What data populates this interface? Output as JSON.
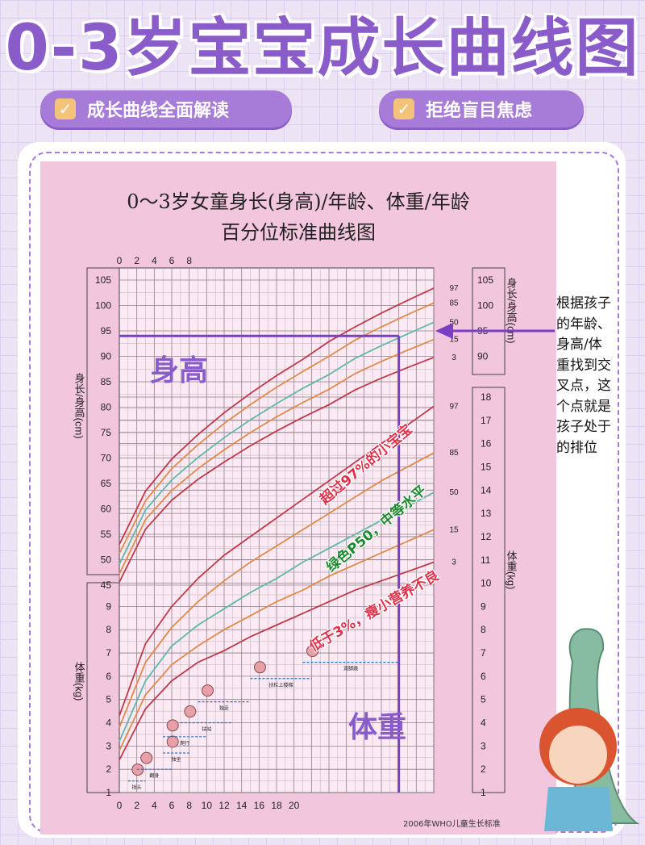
{
  "header": {
    "title": "0-3岁宝宝成长曲线图",
    "pill_left": "成长曲线全面解读",
    "pill_right": "拒绝盲目焦虑"
  },
  "chart": {
    "title_line1": "0～3岁女童身长(身高)/年龄、体重/年龄",
    "title_line2": "百分位标准曲线图",
    "height_axis_label": "身长/身高(cm)",
    "weight_axis_label": "体重(kg)",
    "source": "2006年WHO儿童生长标准",
    "section_height": "身高",
    "section_weight": "体重"
  },
  "annotations": {
    "p97": "超过97%的小宝宝",
    "p50": "绿色P50，中等水平",
    "p3": "低于3%，瘦小营养不良"
  },
  "side_note": "根据孩子的年龄、身高/体重找到交叉点，这个点就是孩子处于的排位",
  "milestones": [
    "抬头",
    "翻身",
    "独坐",
    "爬行",
    "扶站",
    "独走",
    "扶栏上楼梯",
    "双脚跳"
  ],
  "colors": {
    "accent": "#8a5cc9",
    "p97": "#c0394a",
    "p85": "#e08a4a",
    "p50": "#5fb8a8",
    "p15": "#e08a4a",
    "p3": "#c0394a",
    "sheet": "#f2c6dd"
  },
  "chart_data": [
    {
      "type": "line",
      "title": "0～3岁女童身长(身高)/年龄",
      "xlabel": "",
      "ylabel": "身长/身高(cm)",
      "x": [
        0,
        3,
        6,
        9,
        12,
        15,
        18,
        21,
        24,
        27,
        30,
        33,
        36
      ],
      "xlim": [
        0,
        36
      ],
      "ylim": [
        45,
        105
      ],
      "series": [
        {
          "name": "97",
          "values": [
            53.0,
            63.5,
            69.8,
            74.6,
            78.9,
            82.7,
            86.2,
            89.4,
            92.9,
            95.8,
            98.5,
            101.0,
            103.4
          ]
        },
        {
          "name": "85",
          "values": [
            51.2,
            61.6,
            67.9,
            72.6,
            76.8,
            80.5,
            83.9,
            87.0,
            90.0,
            93.2,
            95.8,
            98.2,
            100.5
          ]
        },
        {
          "name": "50",
          "values": [
            49.1,
            59.8,
            65.7,
            70.1,
            74.0,
            77.5,
            80.7,
            83.7,
            86.4,
            89.6,
            92.1,
            94.4,
            96.7
          ]
        },
        {
          "name": "15",
          "values": [
            47.2,
            57.9,
            63.6,
            67.9,
            71.6,
            75.0,
            78.1,
            80.9,
            83.5,
            86.6,
            89.0,
            91.2,
            93.3
          ]
        },
        {
          "name": "3",
          "values": [
            45.6,
            56.0,
            61.7,
            65.8,
            69.2,
            72.4,
            75.3,
            78.0,
            80.5,
            83.4,
            85.7,
            87.8,
            89.8
          ]
        }
      ]
    },
    {
      "type": "line",
      "title": "体重/年龄",
      "xlabel": "",
      "ylabel": "体重(kg)",
      "x": [
        0,
        3,
        6,
        9,
        12,
        15,
        18,
        21,
        24,
        27,
        30,
        33,
        36
      ],
      "xlim": [
        0,
        36
      ],
      "ylim": [
        1,
        18
      ],
      "series": [
        {
          "name": "97",
          "values": [
            4.3,
            7.4,
            9.0,
            10.2,
            11.2,
            12.0,
            12.8,
            13.6,
            14.4,
            15.2,
            16.0,
            16.8,
            17.6
          ]
        },
        {
          "name": "85",
          "values": [
            3.8,
            6.6,
            8.1,
            9.2,
            10.1,
            10.9,
            11.6,
            12.3,
            13.0,
            13.7,
            14.4,
            15.0,
            15.6
          ]
        },
        {
          "name": "50",
          "values": [
            3.2,
            5.8,
            7.3,
            8.2,
            8.9,
            9.6,
            10.2,
            10.9,
            11.5,
            12.1,
            12.7,
            13.3,
            13.9
          ]
        },
        {
          "name": "15",
          "values": [
            2.8,
            5.2,
            6.5,
            7.3,
            8.0,
            8.6,
            9.2,
            9.7,
            10.3,
            10.8,
            11.3,
            11.8,
            12.3
          ]
        },
        {
          "name": "3",
          "values": [
            2.4,
            4.6,
            5.8,
            6.6,
            7.1,
            7.7,
            8.2,
            8.7,
            9.2,
            9.7,
            10.1,
            10.5,
            10.9
          ]
        }
      ],
      "reference_point": {
        "age_months": 32,
        "height_cm": 94
      }
    }
  ]
}
